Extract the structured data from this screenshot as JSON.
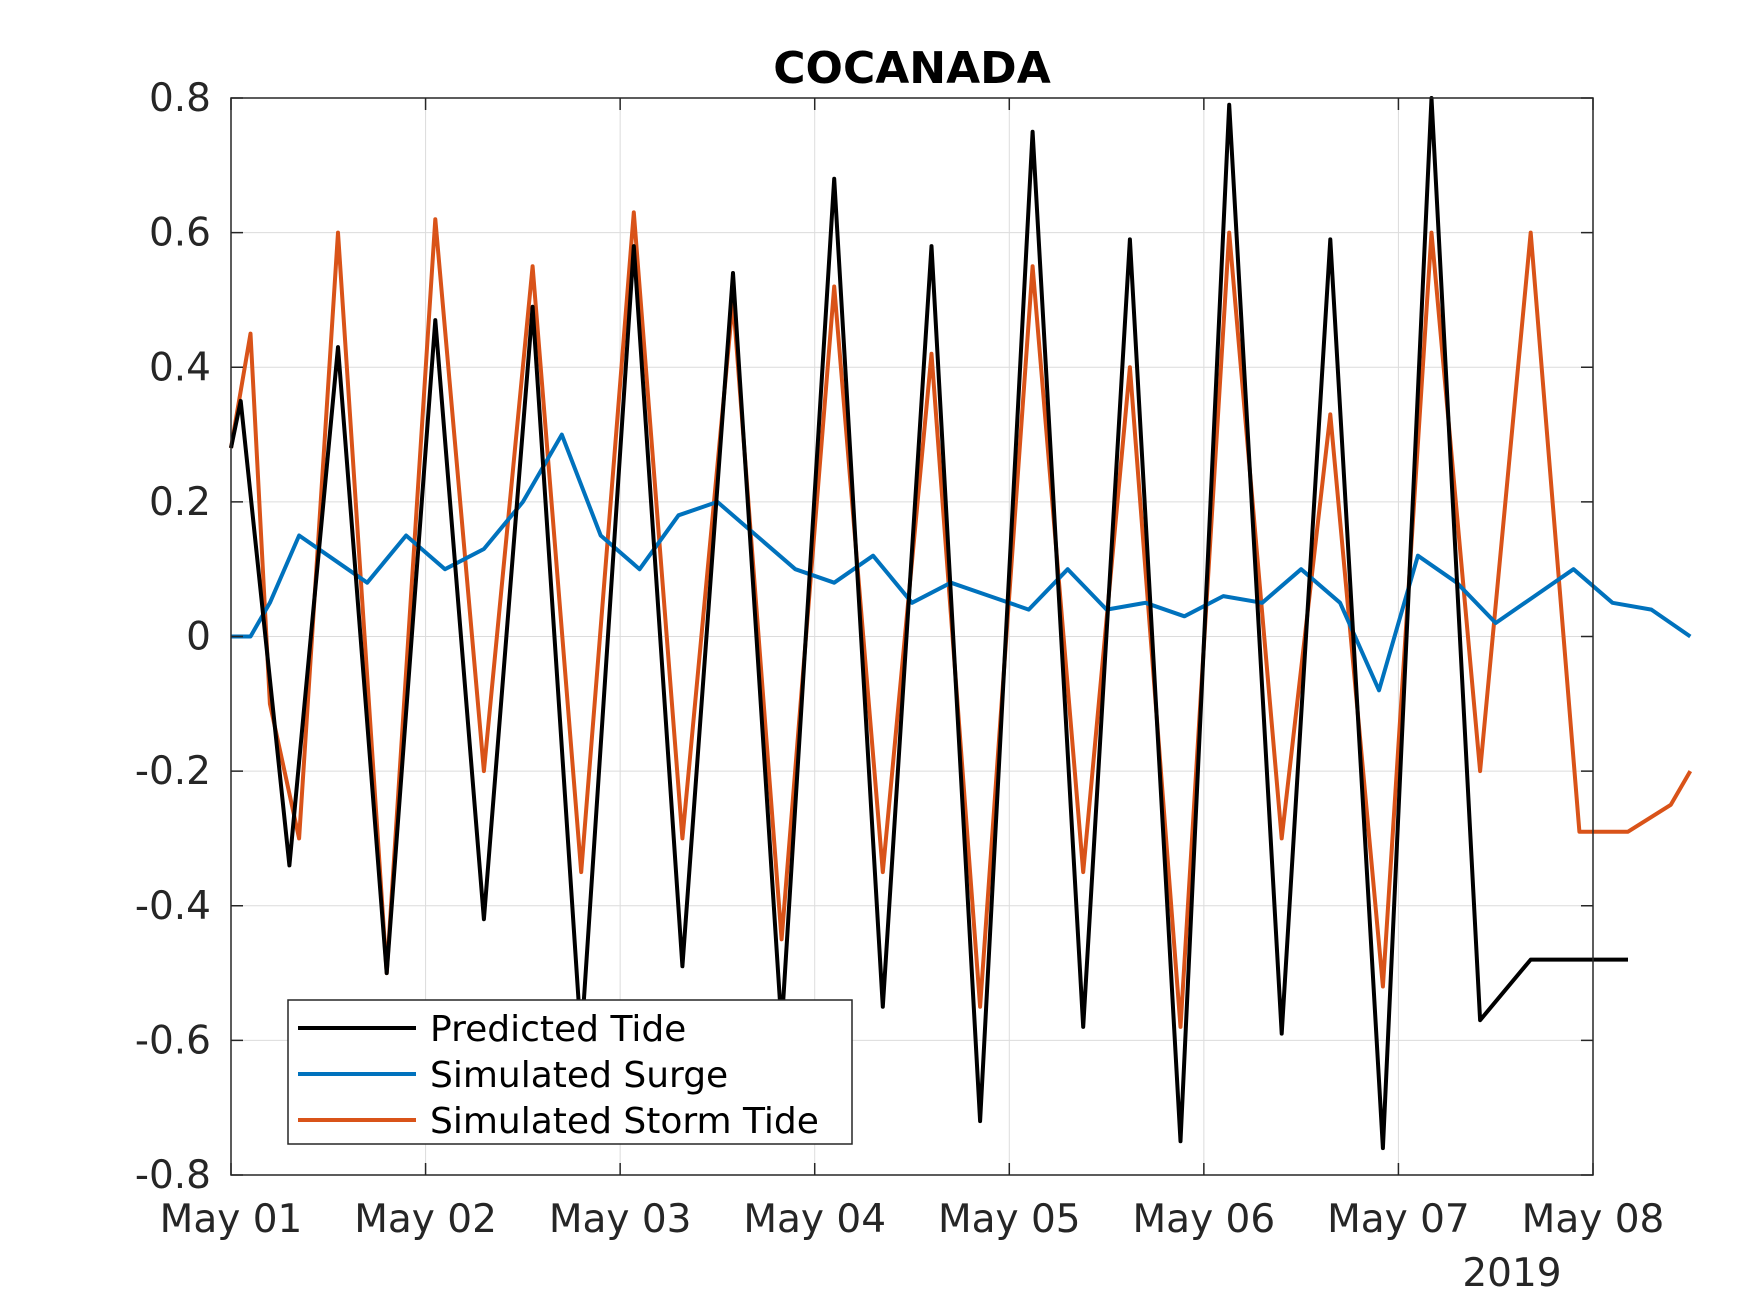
{
  "chart_data": {
    "type": "line",
    "title": "COCANADA",
    "xlabel": "",
    "ylabel": "",
    "x_tick_labels": [
      "May 01",
      "May 02",
      "May 03",
      "May 04",
      "May 05",
      "May 06",
      "May 07",
      "May 08"
    ],
    "x_secondary_label": "2019",
    "x_range_days": [
      0,
      7
    ],
    "x_unit": "days since 2019-05-01 00:00",
    "ylim": [
      -0.8,
      0.8
    ],
    "y_tick_labels": [
      "0.8",
      "0.6",
      "0.4",
      "0.2",
      "0",
      "-0.2",
      "-0.4",
      "-0.6",
      "-0.8"
    ],
    "grid": true,
    "legend_position": "bottom-left",
    "series": [
      {
        "name": "Predicted Tide",
        "color": "#000000",
        "x": [
          0.0,
          0.05,
          0.3,
          0.55,
          0.8,
          1.05,
          1.3,
          1.55,
          1.8,
          2.07,
          2.32,
          2.58,
          2.83,
          3.1,
          3.35,
          3.6,
          3.85,
          4.12,
          4.38,
          4.62,
          4.88,
          5.13,
          5.4,
          5.65,
          5.92,
          6.17,
          6.42,
          6.68,
          6.93,
          7.18
        ],
        "values": [
          0.28,
          0.35,
          -0.34,
          0.43,
          -0.5,
          0.47,
          -0.42,
          0.49,
          -0.6,
          0.58,
          -0.49,
          0.54,
          -0.58,
          0.68,
          -0.55,
          0.58,
          -0.72,
          0.75,
          -0.58,
          0.59,
          -0.75,
          0.79,
          -0.59,
          0.59,
          -0.76,
          0.8,
          -0.57,
          -0.48,
          -0.48,
          -0.48
        ]
      },
      {
        "name": "Simulated Surge",
        "color": "#0072BD",
        "x": [
          0.0,
          0.1,
          0.2,
          0.35,
          0.5,
          0.7,
          0.9,
          1.1,
          1.3,
          1.5,
          1.7,
          1.9,
          2.1,
          2.3,
          2.5,
          2.7,
          2.9,
          3.1,
          3.3,
          3.5,
          3.7,
          3.9,
          4.1,
          4.3,
          4.5,
          4.7,
          4.9,
          5.1,
          5.3,
          5.5,
          5.7,
          5.9,
          6.1,
          6.3,
          6.5,
          6.7,
          6.9,
          7.1,
          7.3,
          7.5
        ],
        "values": [
          0.0,
          0.0,
          0.05,
          0.15,
          0.12,
          0.08,
          0.15,
          0.1,
          0.13,
          0.2,
          0.3,
          0.15,
          0.1,
          0.18,
          0.2,
          0.15,
          0.1,
          0.08,
          0.12,
          0.05,
          0.08,
          0.06,
          0.04,
          0.1,
          0.04,
          0.05,
          0.03,
          0.06,
          0.05,
          0.1,
          0.05,
          -0.08,
          0.12,
          0.08,
          0.02,
          0.06,
          0.1,
          0.05,
          0.04,
          0.0
        ]
      },
      {
        "name": "Simulated Storm Tide",
        "color": "#D95319",
        "x": [
          0.0,
          0.1,
          0.2,
          0.35,
          0.55,
          0.8,
          1.05,
          1.3,
          1.55,
          1.8,
          2.07,
          2.32,
          2.58,
          2.83,
          3.1,
          3.35,
          3.6,
          3.85,
          4.12,
          4.38,
          4.62,
          4.88,
          5.13,
          5.4,
          5.65,
          5.92,
          6.17,
          6.42,
          6.68,
          6.93,
          7.18,
          7.4,
          7.5
        ],
        "values": [
          0.28,
          0.45,
          -0.1,
          -0.3,
          0.6,
          -0.5,
          0.62,
          -0.2,
          0.55,
          -0.35,
          0.63,
          -0.3,
          0.5,
          -0.45,
          0.52,
          -0.35,
          0.42,
          -0.55,
          0.55,
          -0.35,
          0.4,
          -0.58,
          0.6,
          -0.3,
          0.33,
          -0.52,
          0.6,
          -0.2,
          0.6,
          -0.29,
          -0.29,
          -0.25,
          -0.2
        ]
      }
    ]
  }
}
